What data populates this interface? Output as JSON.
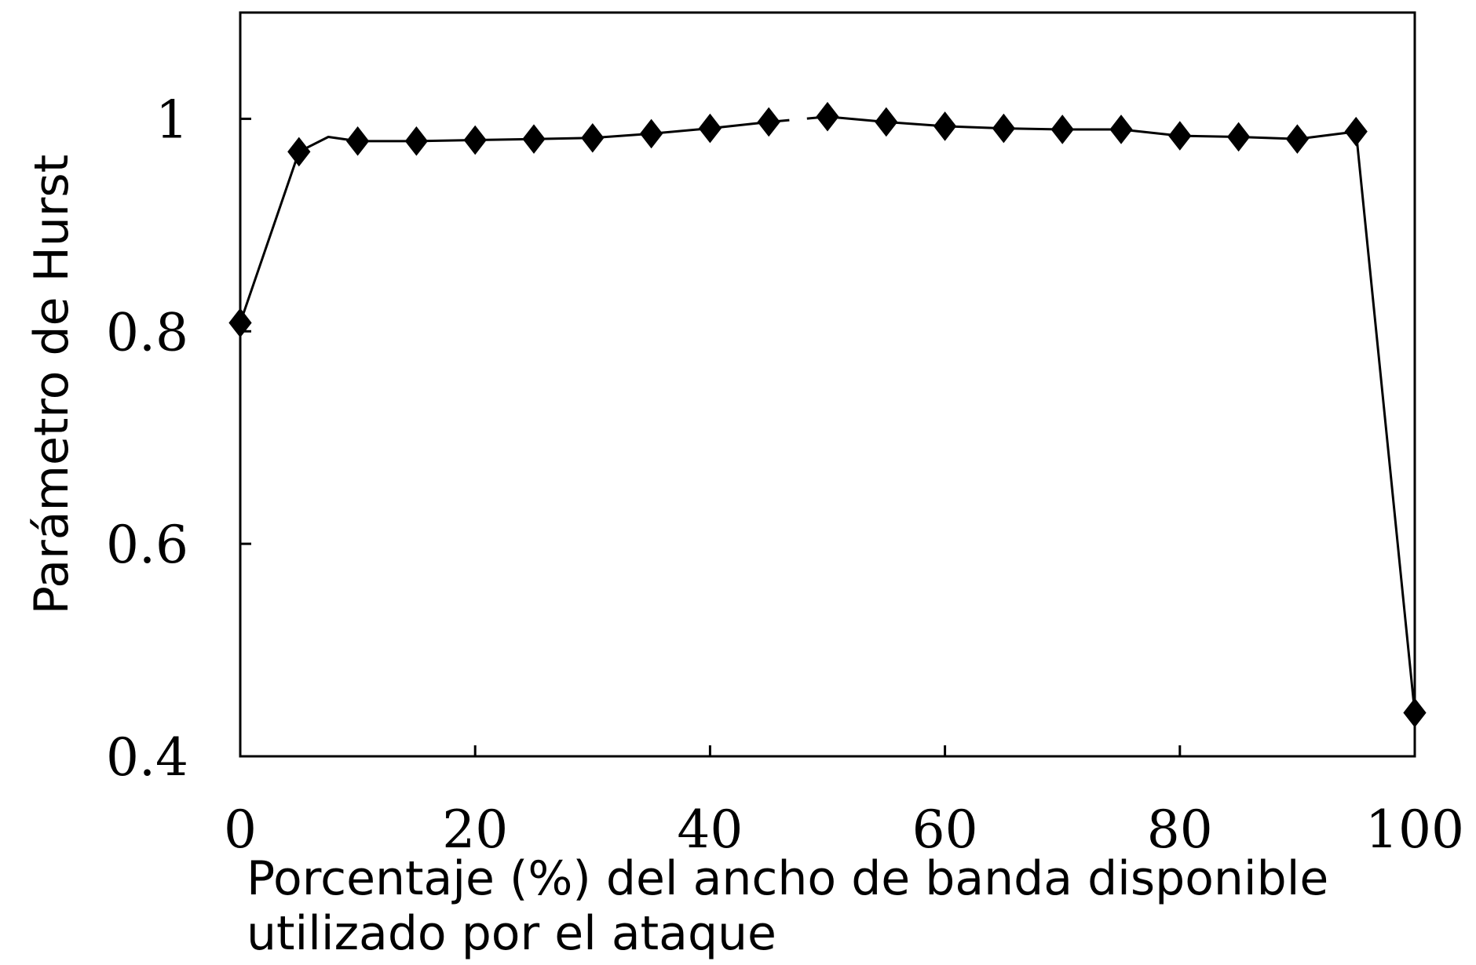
{
  "chart_data": {
    "type": "line",
    "title": "",
    "xlabel_lines": [
      "Porcentaje (%) del ancho de banda disponible",
      "utilizado por el ataque"
    ],
    "ylabel": "Parámetro de Hurst",
    "xlim": [
      0,
      100
    ],
    "ylim": [
      0.4,
      1.1
    ],
    "xticks": [
      0,
      20,
      40,
      60,
      80,
      100
    ],
    "xtick_labels": [
      "0",
      "20",
      "40",
      "60",
      "80",
      "100"
    ],
    "yticks": [
      0.4,
      0.6,
      0.8,
      1.0
    ],
    "ytick_labels": [
      "0.4",
      "0.6",
      "0.8",
      "1"
    ],
    "grid": false,
    "series": [
      {
        "marker": "diamond",
        "color": "#000000",
        "x": [
          0,
          5,
          7.5,
          10,
          15,
          20,
          25,
          30,
          35,
          40,
          45,
          50,
          55,
          60,
          65,
          70,
          75,
          80,
          85,
          90,
          95,
          100
        ],
        "y": [
          0.808,
          0.969,
          0.983,
          0.979,
          0.979,
          0.98,
          0.981,
          0.982,
          0.986,
          0.991,
          0.997,
          1.002,
          0.997,
          0.993,
          0.991,
          0.99,
          0.99,
          0.984,
          0.983,
          0.981,
          0.988,
          0.441
        ],
        "marker_shown": [
          true,
          true,
          false,
          true,
          true,
          true,
          true,
          true,
          true,
          true,
          true,
          true,
          true,
          true,
          true,
          true,
          true,
          true,
          true,
          true,
          true,
          true
        ],
        "line_gap_after_x": 45
      }
    ]
  }
}
